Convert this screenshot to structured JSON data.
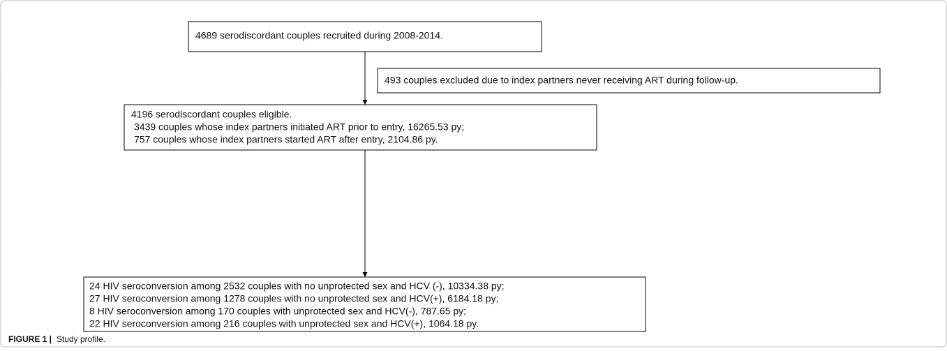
{
  "nodes": [
    {
      "lines": [
        "4689 serodiscordant couples recruited during 2008-2014."
      ]
    },
    {
      "lines": [
        "493 couples excluded due to index partners never receiving ART during follow-up."
      ]
    },
    {
      "lines": [
        "4196 serodiscordant couples eligible.",
        "3439 couples whose index partners initiated ART prior to entry, 16265.53 py;",
        "757 couples whose index partners started ART after entry, 2104.86 py."
      ]
    },
    {
      "lines": [
        "24 HIV seroconversion among 2532 couples with no unprotected sex and HCV (-), 10334.38 py;",
        "27 HIV seroconversion among 1278 couples with no unprotected sex and HCV(+), 6184.18 py;",
        "8 HIV seroconversion among 170 couples with unprotected sex and HCV(-), 787.65 py;",
        "22 HIV seroconversion among 216 couples with unprotected sex and HCV(+), 1064.18 py."
      ]
    }
  ],
  "caption": {
    "label": "FIGURE 1 |",
    "text": "Study profile."
  }
}
